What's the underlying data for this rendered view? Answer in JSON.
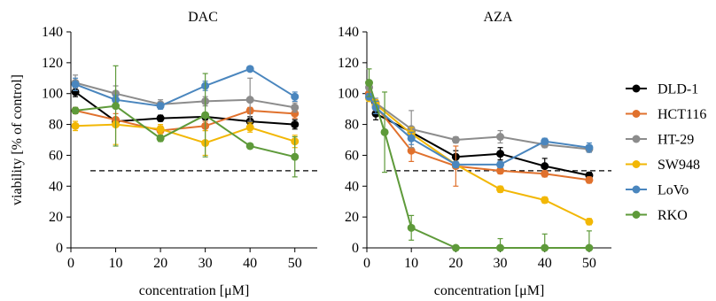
{
  "ylabel": "viability [% of control]",
  "legend": [
    {
      "name": "DLD-1",
      "color": "#000000"
    },
    {
      "name": "HCT116",
      "color": "#E0712D"
    },
    {
      "name": "HT-29",
      "color": "#8C8C8C"
    },
    {
      "name": "SW948",
      "color": "#F2B705"
    },
    {
      "name": "LoVo",
      "color": "#4A86BE"
    },
    {
      "name": "RKO",
      "color": "#5E9A3A"
    }
  ],
  "chart_data": [
    {
      "type": "line",
      "title": "DAC",
      "xlabel": "concentration [μM]",
      "ylabel": "viability [% of control]",
      "xlim": [
        0,
        55
      ],
      "ylim": [
        0,
        140
      ],
      "xticks": [
        0,
        10,
        20,
        30,
        40,
        50
      ],
      "yticks": [
        0,
        20,
        40,
        60,
        80,
        100,
        120,
        140
      ],
      "reference_line": 50,
      "series": [
        {
          "name": "DLD-1",
          "color": "#000000",
          "x": [
            1,
            10,
            20,
            30,
            40,
            50
          ],
          "y": [
            101,
            82,
            84,
            85,
            82,
            80
          ],
          "err": [
            3,
            2,
            2,
            2,
            3,
            3
          ]
        },
        {
          "name": "HCT116",
          "color": "#E0712D",
          "x": [
            1,
            10,
            20,
            30,
            40,
            50
          ],
          "y": [
            89,
            83,
            76,
            79,
            89,
            87
          ],
          "err": [
            2,
            4,
            3,
            3,
            2,
            3
          ]
        },
        {
          "name": "HT-29",
          "color": "#8C8C8C",
          "x": [
            1,
            10,
            20,
            30,
            40,
            50
          ],
          "y": [
            107,
            100,
            93,
            95,
            96,
            91
          ],
          "err": [
            5,
            5,
            3,
            3,
            14,
            3
          ]
        },
        {
          "name": "SW948",
          "color": "#F2B705",
          "x": [
            1,
            10,
            20,
            30,
            40,
            50
          ],
          "y": [
            79,
            80,
            77,
            68,
            78,
            69
          ],
          "err": [
            3,
            13,
            3,
            8,
            3,
            4
          ]
        },
        {
          "name": "LoVo",
          "color": "#4A86BE",
          "x": [
            1,
            10,
            20,
            30,
            40,
            50
          ],
          "y": [
            106,
            96,
            92,
            105,
            116,
            98
          ],
          "err": [
            4,
            3,
            2,
            3,
            1,
            3
          ]
        },
        {
          "name": "RKO",
          "color": "#5E9A3A",
          "x": [
            1,
            10,
            20,
            30,
            40,
            50
          ],
          "y": [
            89,
            92,
            71,
            86,
            66,
            59
          ],
          "err": [
            2,
            26,
            2,
            27,
            1,
            13
          ]
        }
      ]
    },
    {
      "type": "line",
      "title": "AZA",
      "xlabel": "concentration [μM]",
      "ylabel": "",
      "xlim": [
        0,
        55
      ],
      "ylim": [
        0,
        140
      ],
      "xticks": [
        0,
        10,
        20,
        30,
        40,
        50
      ],
      "yticks": [
        0,
        20,
        40,
        60,
        80,
        100,
        120,
        140
      ],
      "reference_line": 50,
      "series": [
        {
          "name": "DLD-1",
          "color": "#000000",
          "x": [
            0.5,
            2,
            10,
            20,
            30,
            40,
            50
          ],
          "y": [
            100,
            87,
            75,
            59,
            61,
            53,
            47
          ],
          "err": [
            2,
            4,
            3,
            4,
            4,
            5,
            2
          ]
        },
        {
          "name": "HCT116",
          "color": "#E0712D",
          "x": [
            0.5,
            2,
            10,
            20,
            30,
            40,
            50
          ],
          "y": [
            100,
            92,
            63,
            53,
            50,
            48,
            44
          ],
          "err": [
            2,
            3,
            7,
            13,
            2,
            2,
            2
          ]
        },
        {
          "name": "HT-29",
          "color": "#8C8C8C",
          "x": [
            0.5,
            2,
            10,
            20,
            30,
            40,
            50
          ],
          "y": [
            104,
            94,
            77,
            70,
            72,
            67,
            64
          ],
          "err": [
            2,
            3,
            12,
            2,
            4,
            2,
            2
          ]
        },
        {
          "name": "SW948",
          "color": "#F2B705",
          "x": [
            0.5,
            2,
            10,
            20,
            30,
            40,
            50
          ],
          "y": [
            97,
            93,
            74,
            54,
            38,
            31,
            17
          ],
          "err": [
            2,
            3,
            4,
            2,
            2,
            2,
            2
          ]
        },
        {
          "name": "LoVo",
          "color": "#4A86BE",
          "x": [
            0.5,
            2,
            10,
            20,
            30,
            40,
            50
          ],
          "y": [
            98,
            91,
            71,
            54,
            54,
            69,
            65
          ],
          "err": [
            2,
            4,
            4,
            2,
            2,
            2,
            3
          ]
        },
        {
          "name": "RKO",
          "color": "#5E9A3A",
          "x": [
            0.5,
            4,
            10,
            20,
            30,
            40,
            50
          ],
          "y": [
            107,
            75,
            13,
            0,
            0,
            0,
            0
          ],
          "err": [
            9,
            26,
            8,
            0,
            6,
            9,
            11
          ]
        }
      ]
    }
  ]
}
